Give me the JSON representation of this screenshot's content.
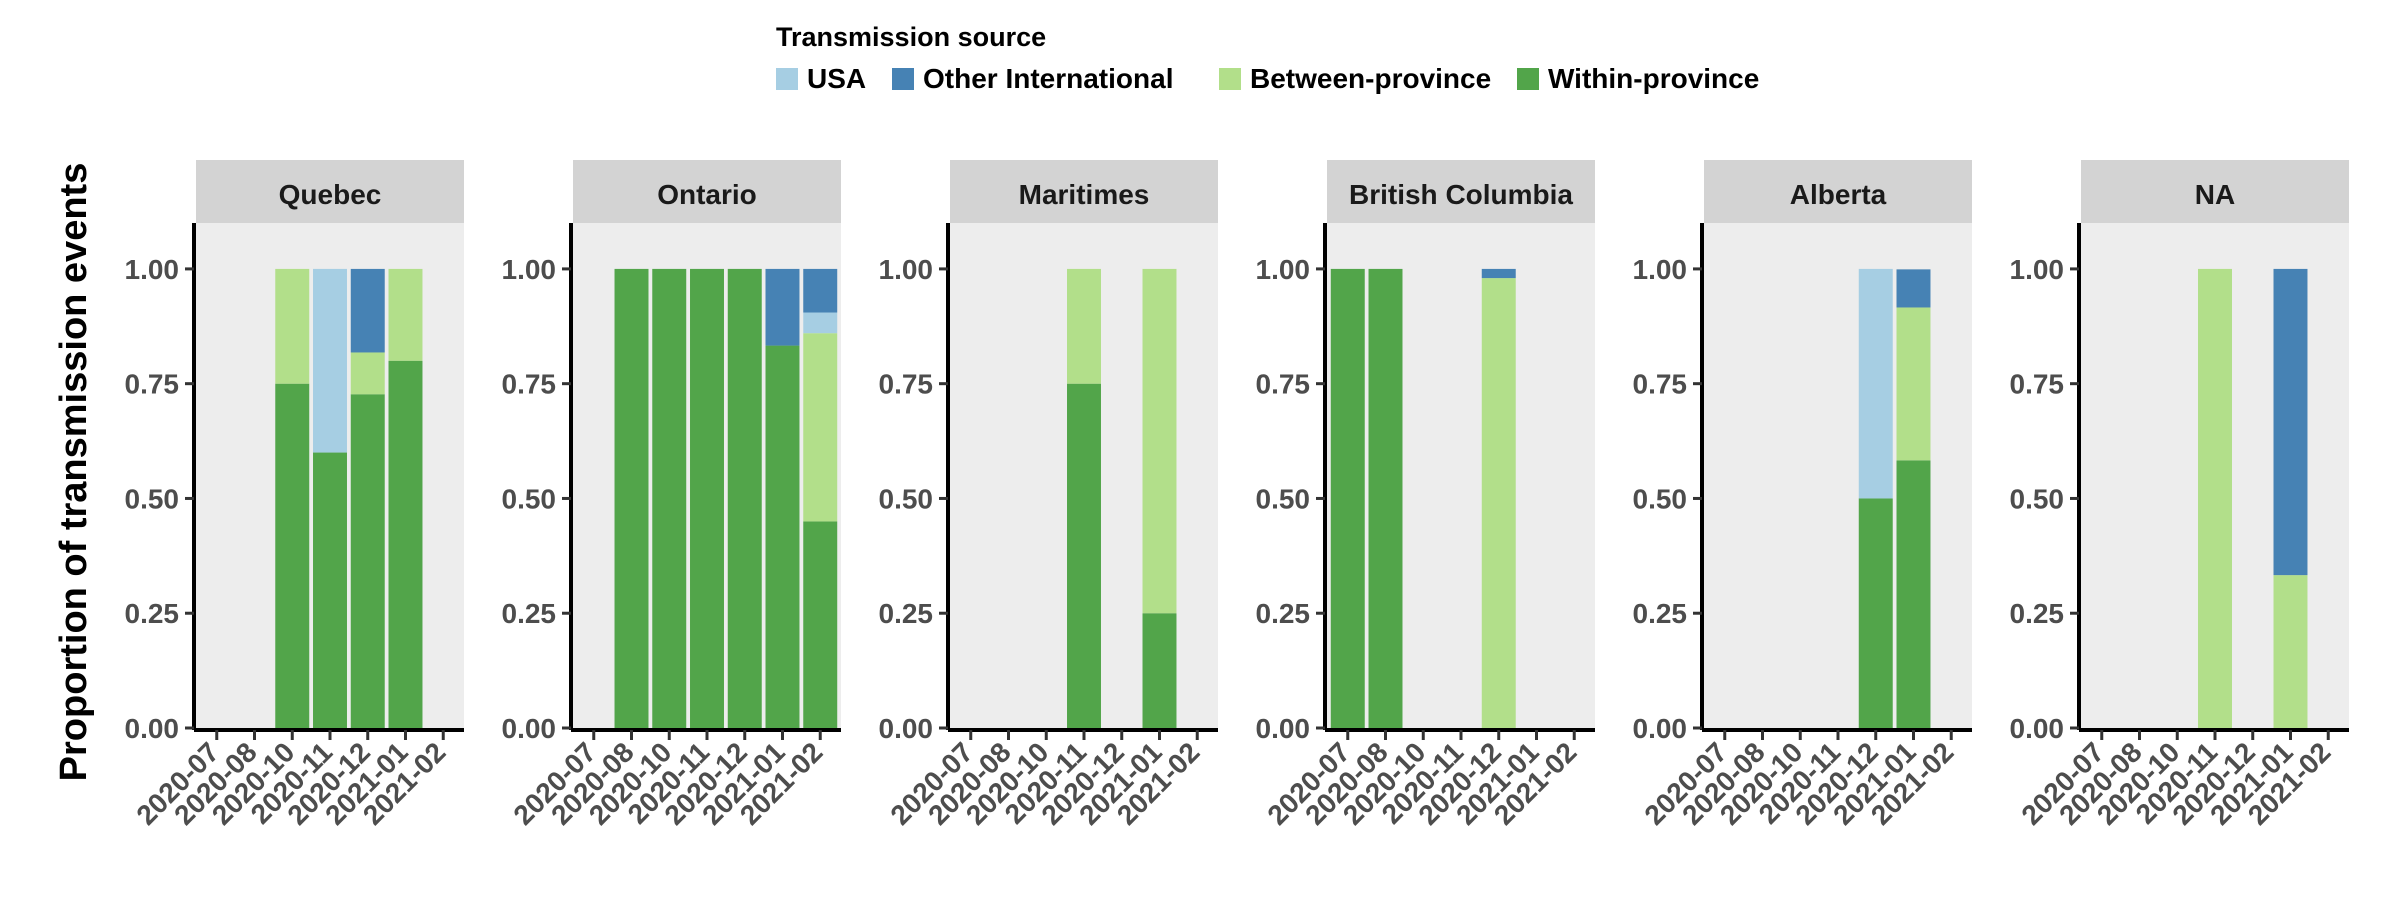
{
  "chart_data": {
    "type": "bar",
    "stacked": true,
    "ylabel": "Proportion of transmission events",
    "yticks": [
      "0.00",
      "0.25",
      "0.50",
      "0.75",
      "1.00"
    ],
    "ylim": [
      0,
      1.1
    ],
    "categories": [
      "2020-07",
      "2020-08",
      "2020-10",
      "2020-11",
      "2020-12",
      "2021-01",
      "2021-02"
    ],
    "legend": {
      "title": "Transmission source",
      "position": "top",
      "entries": [
        {
          "name": "USA",
          "color": "#a6cee3"
        },
        {
          "name": "Other International",
          "color": "#4682b4"
        },
        {
          "name": "Between-province",
          "color": "#b2df8a"
        },
        {
          "name": "Within-province",
          "color": "#52a54a"
        }
      ]
    },
    "stack_order": [
      "Within-province",
      "Between-province",
      "USA",
      "Other International"
    ],
    "panels": [
      {
        "name": "Quebec",
        "bars": [
          {
            "x": "2020-10",
            "values": {
              "Within-province": 0.75,
              "Between-province": 0.25
            }
          },
          {
            "x": "2020-11",
            "values": {
              "Within-province": 0.6,
              "USA": 0.4
            }
          },
          {
            "x": "2020-12",
            "values": {
              "Within-province": 0.727,
              "Between-province": 0.091,
              "Other International": 0.182
            }
          },
          {
            "x": "2021-01",
            "values": {
              "Within-province": 0.8,
              "Between-province": 0.2
            }
          }
        ]
      },
      {
        "name": "Ontario",
        "bars": [
          {
            "x": "2020-08",
            "values": {
              "Within-province": 1.0
            }
          },
          {
            "x": "2020-10",
            "values": {
              "Within-province": 1.0
            }
          },
          {
            "x": "2020-11",
            "values": {
              "Within-province": 1.0
            }
          },
          {
            "x": "2020-12",
            "values": {
              "Within-province": 1.0
            }
          },
          {
            "x": "2021-01",
            "values": {
              "Within-province": 0.833,
              "Other International": 0.167
            }
          },
          {
            "x": "2021-02",
            "values": {
              "Within-province": 0.45,
              "Between-province": 0.41,
              "Other International": 0.095,
              "USA": 0.045
            }
          }
        ]
      },
      {
        "name": "Maritimes",
        "bars": [
          {
            "x": "2020-11",
            "values": {
              "Within-province": 0.75,
              "Between-province": 0.25
            }
          },
          {
            "x": "2021-01",
            "values": {
              "Within-province": 0.25,
              "Between-province": 0.75
            }
          }
        ]
      },
      {
        "name": "British Columbia",
        "bars": [
          {
            "x": "2020-07",
            "values": {
              "Within-province": 1.0
            }
          },
          {
            "x": "2020-08",
            "values": {
              "Within-province": 1.0
            }
          },
          {
            "x": "2020-12",
            "values": {
              "Between-province": 0.98,
              "Other International": 0.02
            }
          }
        ]
      },
      {
        "name": "Alberta",
        "bars": [
          {
            "x": "2020-12",
            "values": {
              "Within-province": 0.5,
              "USA": 0.5
            }
          },
          {
            "x": "2021-01",
            "values": {
              "Within-province": 0.583,
              "Between-province": 0.333,
              "Other International": 0.083
            }
          }
        ]
      },
      {
        "name": "NA",
        "bars": [
          {
            "x": "2020-11",
            "values": {
              "Between-province": 1.0
            }
          },
          {
            "x": "2021-01",
            "values": {
              "Between-province": 0.333,
              "Other International": 0.667
            }
          }
        ]
      }
    ]
  }
}
